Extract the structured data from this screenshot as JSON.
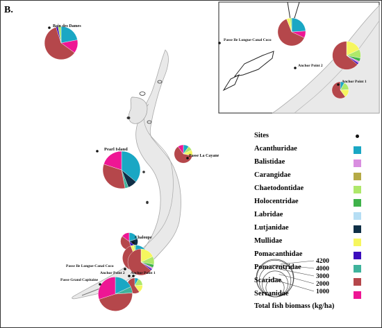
{
  "figure_label": "B.",
  "colors": {
    "Acanthuridae": "#1aa7c4",
    "Balistidae": "#d98ee0",
    "Carangidae": "#b5aa46",
    "Chaetodontidae": "#aee86a",
    "Holocentridae": "#3fb24a",
    "Labridae": "#b6def4",
    "Lutjanidae": "#0f2f46",
    "Mullidae": "#f6f65e",
    "Pomacanthidae": "#3b0dbd",
    "Pomacentridae": "#3fb39c",
    "Scaridae": "#b5474b",
    "Serranidae": "#ee1694"
  },
  "legend": {
    "sites_label": "Sites",
    "families": [
      "Acanthuridae",
      "Balistidae",
      "Carangidae",
      "Chaetodontidae",
      "Holocentridae",
      "Labridae",
      "Lutjanidae",
      "Mullidae",
      "Pomacanthidae",
      "Pomacentridae",
      "Scaridae",
      "Serranidae"
    ],
    "biomass_title": "Total fish biomass (kg/ha)",
    "biomass_values": [
      4200,
      4000,
      3000,
      2000,
      1000
    ]
  },
  "sites": [
    {
      "name": "Bain des Dames",
      "biomass": 3300,
      "composition": {
        "Acanthuridae": 22,
        "Serranidae": 13,
        "Scaridae": 60,
        "Pomacanthidae": 2,
        "Chaetodontidae": 3
      }
    },
    {
      "name": "Pearl Island",
      "biomass": 4200,
      "composition": {
        "Acanthuridae": 36,
        "Lutjanidae": 8,
        "Pomacentridae": 3,
        "Scaridae": 33,
        "Serranidae": 20
      }
    },
    {
      "name": "Passe La Cayane",
      "biomass": 1000,
      "composition": {
        "Acanthuridae": 10,
        "Chaetodontidae": 8,
        "Mullidae": 10,
        "Scaridae": 62,
        "Serranidae": 10
      }
    },
    {
      "name": "Chaloupe",
      "biomass": 900,
      "composition": {
        "Acanthuridae": 20,
        "Lutjanidae": 15,
        "Pomacanthidae": 10,
        "Scaridae": 40,
        "Serranidae": 15
      }
    },
    {
      "name": "Passe Ile Longue-Canal Coco",
      "biomass": 3300,
      "composition": {
        "Acanthuridae": 24,
        "Serranidae": 8,
        "Scaridae": 62,
        "Mullidae": 4,
        "Chaetodontidae": 2
      }
    },
    {
      "name": "Anchor Point 2",
      "biomass": 3400,
      "composition": {
        "Mullidae": 18,
        "Chaetodontidae": 10,
        "Holocentridae": 4,
        "Balistidae": 2,
        "Pomacanthidae": 2,
        "Scaridae": 64
      }
    },
    {
      "name": "Anchor Point 1",
      "biomass": 1200,
      "composition": {
        "Acanthuridae": 8,
        "Chaetodontidae": 16,
        "Mullidae": 16,
        "Scaridae": 60
      }
    },
    {
      "name": "Passe Grand Capitaine",
      "biomass": 3500,
      "composition": {
        "Acanthuridae": 18,
        "Pomacentridae": 6,
        "Scaridae": 46,
        "Serranidae": 30
      }
    }
  ]
}
